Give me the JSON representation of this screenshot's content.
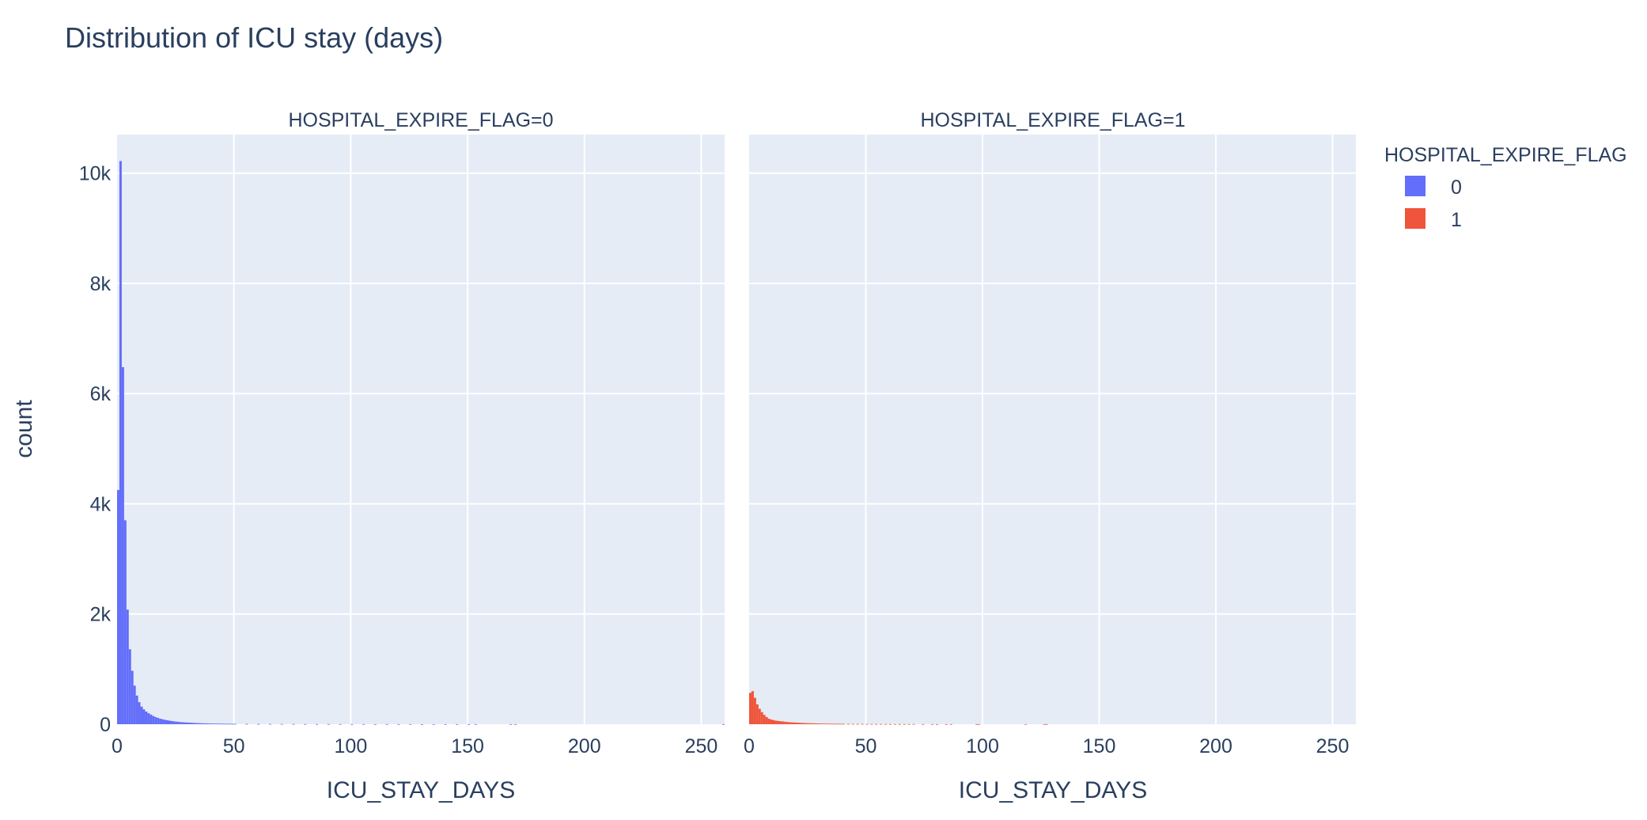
{
  "chart_data": {
    "type": "bar",
    "title": "Distribution of ICU stay (days)",
    "ylabel": "count",
    "legend": {
      "title": "HOSPITAL_EXPIRE_FLAG",
      "placement": "top-right",
      "entries": [
        {
          "label": "0",
          "color": "#636efa"
        },
        {
          "label": "1",
          "color": "#ef553b"
        }
      ]
    },
    "ylim": [
      0,
      10700
    ],
    "y_ticks": [
      0,
      2000,
      4000,
      6000,
      8000,
      10000
    ],
    "y_tick_labels": [
      "0",
      "2k",
      "4k",
      "6k",
      "8k",
      "10k"
    ],
    "grid": true,
    "bin_width": 1,
    "panels": [
      {
        "subtitle": "HOSPITAL_EXPIRE_FLAG=0",
        "xlabel": "ICU_STAY_DAYS",
        "xlim": [
          0,
          260
        ],
        "x_ticks": [
          0,
          50,
          100,
          150,
          200,
          250
        ],
        "color": "#636efa",
        "bins": [
          0,
          1,
          2,
          3,
          4,
          5,
          6,
          7,
          8,
          9,
          10,
          11,
          12,
          13,
          14,
          15,
          16,
          17,
          18,
          19,
          20,
          21,
          22,
          23,
          24,
          25,
          26,
          27,
          28,
          29,
          30,
          31,
          32,
          33,
          34,
          35,
          36,
          37,
          38,
          39,
          40,
          41,
          42,
          43,
          44,
          45,
          46,
          47,
          48,
          49,
          50,
          55,
          60,
          65,
          70,
          75,
          80,
          85,
          90,
          95,
          100,
          105,
          110,
          115,
          120,
          125,
          130,
          135,
          140,
          145,
          150,
          153,
          168,
          170,
          259
        ],
        "values": [
          4250,
          10220,
          6480,
          3700,
          2080,
          1360,
          970,
          700,
          520,
          400,
          320,
          270,
          230,
          200,
          175,
          150,
          130,
          115,
          100,
          90,
          80,
          72,
          65,
          58,
          52,
          47,
          42,
          38,
          35,
          32,
          30,
          27,
          25,
          22,
          20,
          19,
          17,
          16,
          15,
          14,
          13,
          12,
          11,
          10,
          10,
          9,
          9,
          8,
          8,
          7,
          7,
          6,
          5,
          5,
          4,
          4,
          3,
          3,
          3,
          3,
          2,
          2,
          2,
          2,
          2,
          2,
          1,
          1,
          1,
          1,
          1,
          1,
          1,
          1,
          1
        ]
      },
      {
        "subtitle": "HOSPITAL_EXPIRE_FLAG=1",
        "xlabel": "ICU_STAY_DAYS",
        "xlim": [
          0,
          260
        ],
        "x_ticks": [
          0,
          50,
          100,
          150,
          200,
          250
        ],
        "color": "#ef553b",
        "bins": [
          0,
          1,
          2,
          3,
          4,
          5,
          6,
          7,
          8,
          9,
          10,
          11,
          12,
          13,
          14,
          15,
          16,
          17,
          18,
          19,
          20,
          21,
          22,
          23,
          24,
          25,
          26,
          27,
          28,
          29,
          30,
          31,
          32,
          33,
          34,
          35,
          36,
          37,
          38,
          39,
          40,
          42,
          44,
          46,
          48,
          50,
          52,
          54,
          56,
          58,
          60,
          62,
          64,
          66,
          68,
          70,
          74,
          78,
          80,
          84,
          86,
          97,
          98,
          118,
          126,
          127
        ],
        "values": [
          570,
          600,
          480,
          360,
          280,
          220,
          170,
          130,
          100,
          85,
          75,
          65,
          60,
          55,
          50,
          45,
          40,
          36,
          33,
          30,
          28,
          26,
          24,
          22,
          20,
          18,
          17,
          16,
          15,
          14,
          13,
          12,
          11,
          10,
          10,
          9,
          9,
          8,
          8,
          7,
          7,
          6,
          6,
          5,
          5,
          5,
          4,
          4,
          4,
          4,
          3,
          3,
          3,
          3,
          3,
          3,
          2,
          2,
          2,
          2,
          2,
          2,
          2,
          2,
          2,
          2
        ]
      }
    ]
  }
}
